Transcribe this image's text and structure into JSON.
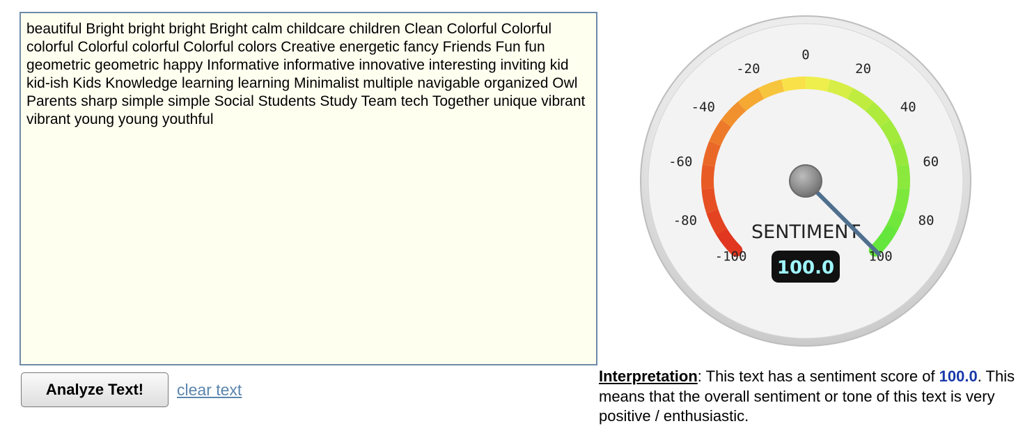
{
  "editor": {
    "text": "beautiful Bright bright bright Bright calm childcare children Clean Colorful Colorful colorful Colorful colorful Colorful colors Creative energetic fancy Friends Fun fun geometric geometric happy Informative informative innovative interesting inviting kid kid-ish Kids Knowledge learning learning Minimalist multiple navigable organized Owl Parents sharp simple simple Social Students Study Team tech Together unique vibrant vibrant young young youthful"
  },
  "actions": {
    "analyze_label": "Analyze Text!",
    "clear_label": "clear text"
  },
  "gauge": {
    "title": "SENTIMENT",
    "value_display": "100.0",
    "value": 100,
    "min": -100,
    "max": 100,
    "tick_labels": [
      "-100",
      "-80",
      "-60",
      "-40",
      "-20",
      "0",
      "20",
      "40",
      "60",
      "80",
      "100"
    ]
  },
  "interpretation": {
    "heading": "Interpretation",
    "text_before": ": This text has a sentiment score of ",
    "score": "100.0",
    "text_after": ". This means that the overall sentiment or tone of this text is very positive / enthusiastic."
  },
  "colors": {
    "editor_bg": "#fffff0",
    "editor_border": "#6c8aa9",
    "link": "#5a85ad",
    "score": "#1a3aa8",
    "needle": "#4f6f8f",
    "value_text": "#9ff7ff"
  }
}
